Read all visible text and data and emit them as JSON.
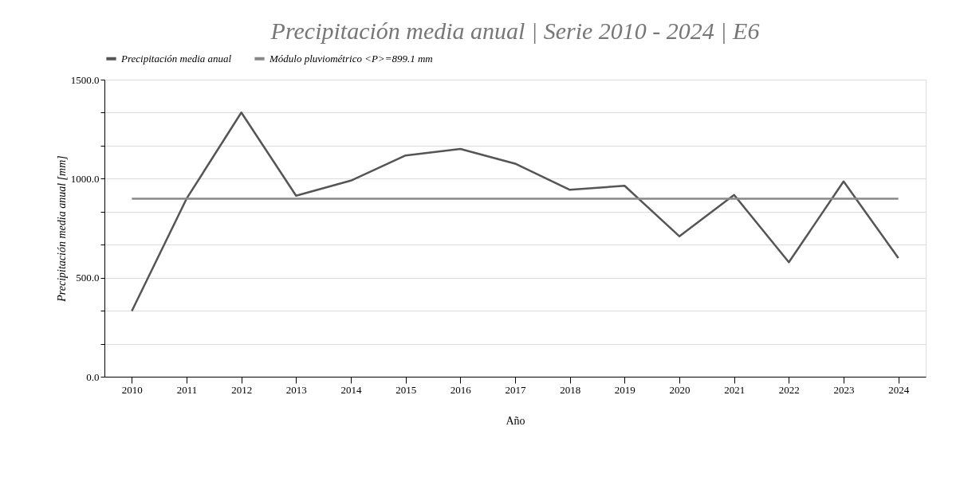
{
  "chart_data": {
    "type": "line",
    "title": "Precipitación media anual | Serie 2010 - 2024 | E6",
    "xlabel": "Año",
    "ylabel": "Precipitación media anual [mm]",
    "categories": [
      "2010",
      "2011",
      "2012",
      "2013",
      "2014",
      "2015",
      "2016",
      "2017",
      "2018",
      "2019",
      "2020",
      "2021",
      "2022",
      "2023",
      "2024"
    ],
    "series": [
      {
        "name": "Precipitación media anual",
        "color": "#555555",
        "values": [
          332,
          899,
          1334,
          914,
          990,
          1117,
          1150,
          1076,
          944,
          964,
          709,
          918,
          578,
          986,
          599
        ]
      },
      {
        "name": "Módulo pluviométrico <P>=899.1 mm",
        "color": "#888888",
        "values": [
          899.1,
          899.1,
          899.1,
          899.1,
          899.1,
          899.1,
          899.1,
          899.1,
          899.1,
          899.1,
          899.1,
          899.1,
          899.1,
          899.1,
          899.1
        ]
      }
    ],
    "ylim": [
      0,
      1500
    ],
    "yticks": [
      {
        "value": 0,
        "label": "0.0"
      },
      {
        "value": 166.7,
        "label": null
      },
      {
        "value": 333.3,
        "label": null
      },
      {
        "value": 500,
        "label": "500.0"
      },
      {
        "value": 666.7,
        "label": null
      },
      {
        "value": 833.3,
        "label": null
      },
      {
        "value": 1000,
        "label": "1000.0"
      },
      {
        "value": 1166.7,
        "label": null
      },
      {
        "value": 1333.3,
        "label": null
      },
      {
        "value": 1500,
        "label": "1500.0"
      }
    ],
    "grid": "y",
    "legend": "top",
    "marker": "none",
    "line_style": "solid"
  }
}
